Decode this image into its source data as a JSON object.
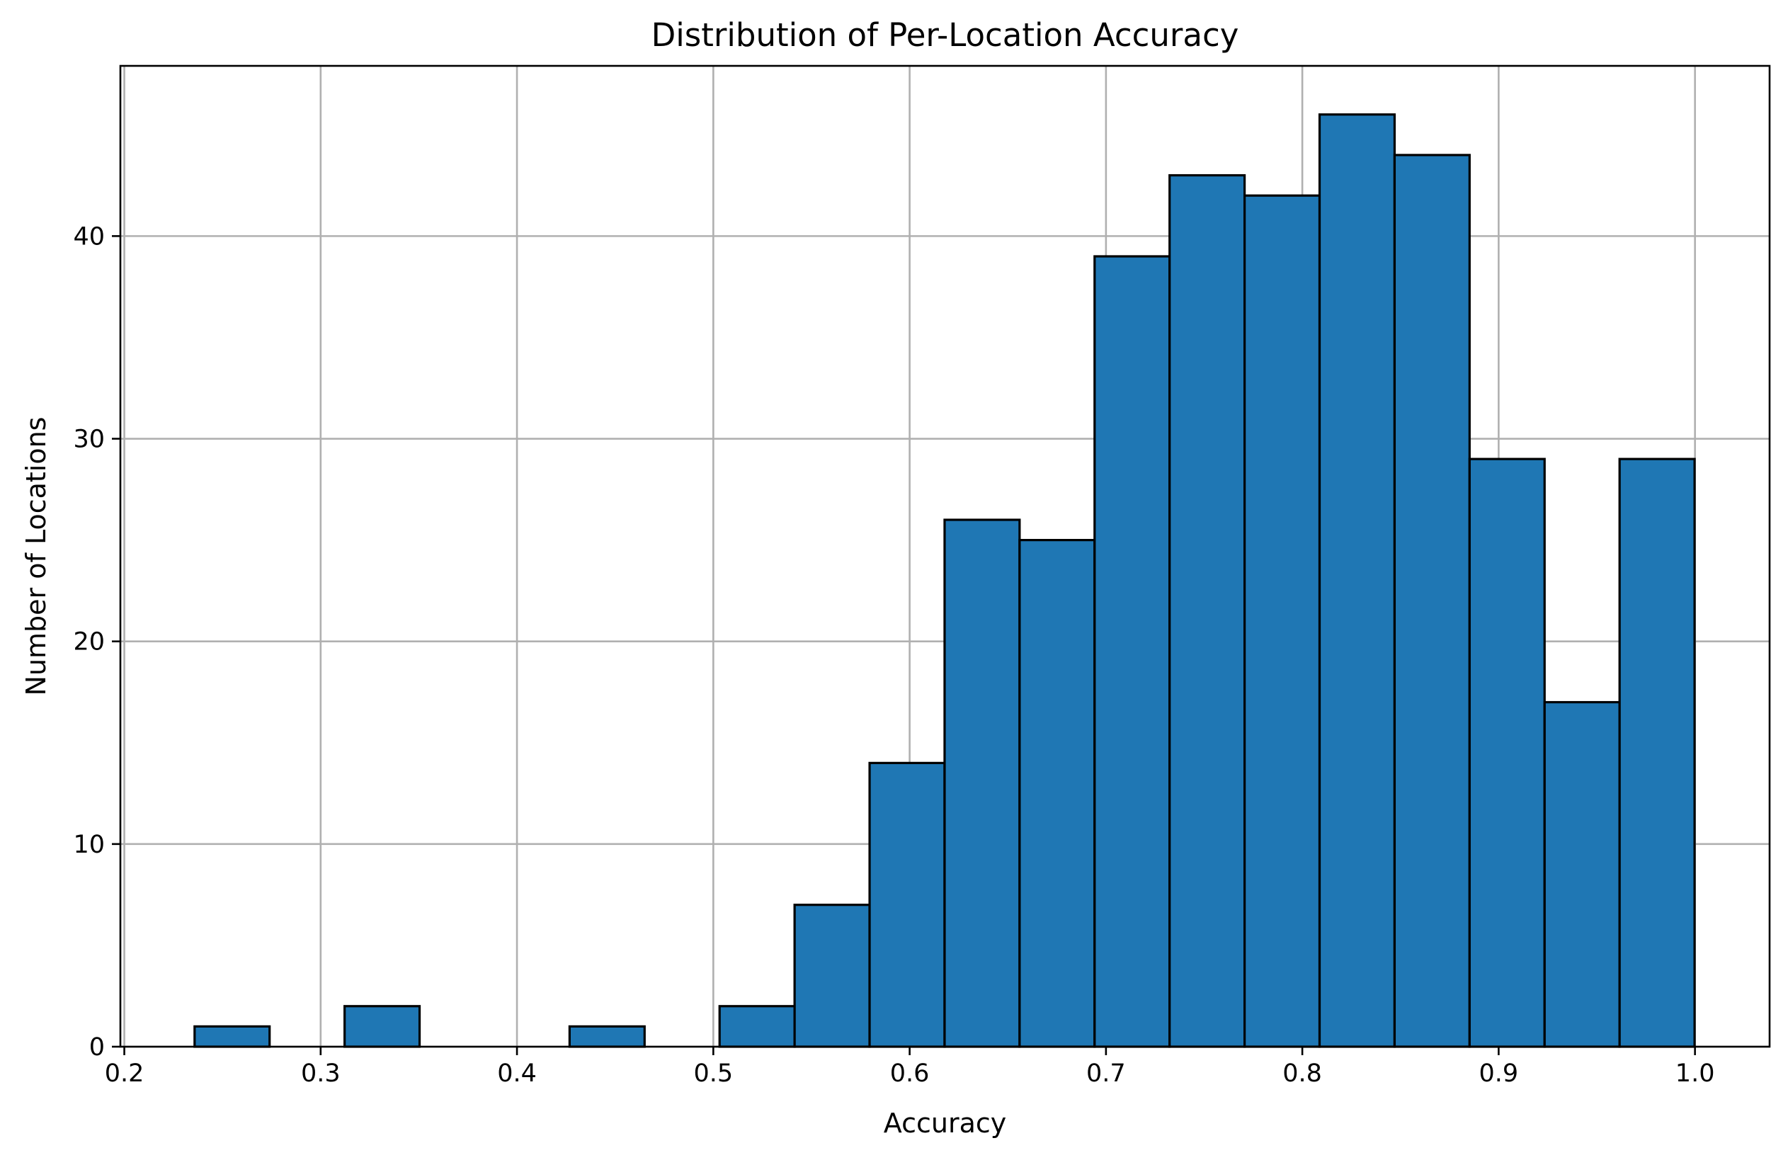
{
  "chart_data": {
    "type": "bar",
    "title": "Distribution of Per-Location Accuracy",
    "xlabel": "Accuracy",
    "ylabel": "Number of Locations",
    "bar_color": "#1f77b4",
    "edge_color": "#000000",
    "grid": true,
    "xlim": [
      0.198,
      1.038
    ],
    "ylim": [
      0,
      48.4
    ],
    "xticks": [
      0.2,
      0.3,
      0.4,
      0.5,
      0.6,
      0.7,
      0.8,
      0.9,
      1.0
    ],
    "xtick_labels": [
      "0.2",
      "0.3",
      "0.4",
      "0.5",
      "0.6",
      "0.7",
      "0.8",
      "0.9",
      "1.0"
    ],
    "yticks": [
      0,
      10,
      20,
      30,
      40
    ],
    "ytick_labels": [
      "0",
      "10",
      "20",
      "30",
      "40"
    ],
    "bin_edges": [
      0.2358,
      0.274,
      0.3122,
      0.3504,
      0.3886,
      0.4268,
      0.465,
      0.5032,
      0.5414,
      0.5796,
      0.6178,
      0.656,
      0.6942,
      0.7324,
      0.7706,
      0.8088,
      0.847,
      0.8852,
      0.9234,
      0.9616,
      0.9998
    ],
    "values": [
      1,
      0,
      2,
      0,
      0,
      1,
      0,
      2,
      7,
      14,
      26,
      25,
      39,
      43,
      42,
      46,
      44,
      29,
      17,
      29
    ]
  }
}
